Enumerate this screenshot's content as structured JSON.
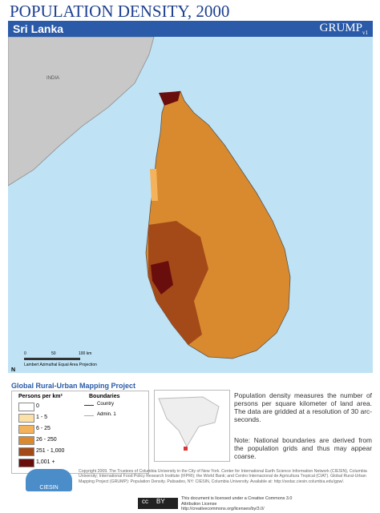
{
  "header": {
    "title": "POPULATION DENSITY, 2000",
    "subtitle": "Sri Lanka",
    "logo": "GRUMP",
    "logo_version": "v1"
  },
  "map": {
    "labels": [
      "INDIA"
    ],
    "scale_ticks": [
      "0",
      "50",
      "100 km"
    ],
    "projection": "Lambert Azimuthal Equal Area Projection",
    "north": "N"
  },
  "legend": {
    "project": "Global Rural-Urban Mapping Project",
    "density_title": "Persons per km²",
    "classes": [
      {
        "label": "0",
        "color": "#ffffff"
      },
      {
        "label": "1 - 5",
        "color": "#fbe0a8"
      },
      {
        "label": "6 - 25",
        "color": "#f4b25a"
      },
      {
        "label": "26 - 250",
        "color": "#d98a2e"
      },
      {
        "label": "251 - 1,000",
        "color": "#a44a18"
      },
      {
        "label": "1,001 +",
        "color": "#6a0d0d"
      }
    ],
    "boundaries_title": "Boundaries",
    "boundaries": [
      "Country",
      "Admin. 1"
    ]
  },
  "description": [
    "Population density measures the number of persons per square kilometer of land area. The data are gridded at a resolution of 30 arc-seconds.",
    "Note: National boundaries are derived from the population grids and thus may appear coarse."
  ],
  "footer": {
    "copyright": "Copyright 2009. The Trustees of Columbia University in the City of New York. Center for International Earth Science Information Network (CIESIN), Columbia University; International Food Policy Research Institute (IFPRI); the World Bank; and Centro Internacional de Agricultura Tropical (CIAT). Global Rural-Urban Mapping Project (GRUMP): Population Density. Palisades, NY: CIESIN, Columbia University. Available at: http://sedac.ciesin.columbia.edu/gpw/.",
    "logo": "CIESIN",
    "license": "This document is licensed under a Creative Commons 3.0 Attribution License http://creativecommons.org/licenses/by/3.0/",
    "cc": "cc",
    "by": "BY"
  }
}
